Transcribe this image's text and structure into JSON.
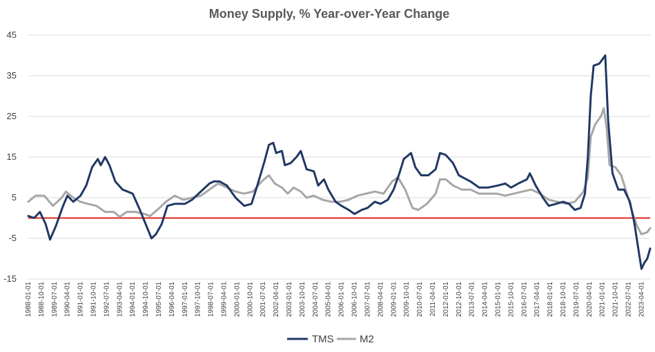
{
  "chart_data": {
    "type": "line",
    "title": "Money Supply, % Year-over-Year Change",
    "xlabel": "",
    "ylabel": "",
    "ylim": [
      -15,
      45
    ],
    "yticks": [
      45,
      35,
      25,
      15,
      5,
      -5,
      -15
    ],
    "grid": "horizontal",
    "legend_position": "bottom",
    "reference_line": {
      "value": 0,
      "color": "#e0251b"
    },
    "x_range": [
      "1988-01-01",
      "2023-10-01"
    ],
    "xticks": [
      "1988-01-01",
      "1988-10-01",
      "1989-07-01",
      "1990-04-01",
      "1991-01-01",
      "1991-10-01",
      "1992-07-01",
      "1993-04-01",
      "1994-01-01",
      "1994-10-01",
      "1995-07-01",
      "1996-04-01",
      "1997-01-01",
      "1997-10-01",
      "1998-07-01",
      "1999-04-01",
      "2000-01-01",
      "2000-10-01",
      "2001-07-01",
      "2002-04-01",
      "2003-01-01",
      "2003-10-01",
      "2004-07-01",
      "2005-04-01",
      "2006-01-01",
      "2006-10-01",
      "2007-07-01",
      "2008-04-01",
      "2009-01-01",
      "2009-10-01",
      "2010-07-01",
      "2011-04-01",
      "2012-01-01",
      "2012-10-01",
      "2013-07-01",
      "2014-04-01",
      "2015-01-01",
      "2015-10-01",
      "2016-07-01",
      "2017-04-01",
      "2018-01-01",
      "2018-10-01",
      "2019-07-01",
      "2020-04-01",
      "2021-01-01",
      "2021-10-01",
      "2022-07-01",
      "2023-04-01"
    ],
    "series": [
      {
        "name": "TMS",
        "color": "#1f3864",
        "points": [
          [
            "1988-01-01",
            0.5
          ],
          [
            "1988-05-01",
            0.0
          ],
          [
            "1988-09-01",
            1.5
          ],
          [
            "1989-01-01",
            -1.5
          ],
          [
            "1989-04-01",
            -5.3
          ],
          [
            "1989-08-01",
            -2.0
          ],
          [
            "1990-01-01",
            3.0
          ],
          [
            "1990-04-01",
            5.5
          ],
          [
            "1990-08-01",
            4.0
          ],
          [
            "1991-01-01",
            5.5
          ],
          [
            "1991-05-01",
            8.0
          ],
          [
            "1991-09-01",
            12.5
          ],
          [
            "1992-01-01",
            14.5
          ],
          [
            "1992-03-01",
            13.0
          ],
          [
            "1992-06-01",
            15.0
          ],
          [
            "1992-09-01",
            13.0
          ],
          [
            "1993-01-01",
            9.0
          ],
          [
            "1993-06-01",
            7.0
          ],
          [
            "1994-01-01",
            6.0
          ],
          [
            "1994-06-01",
            2.0
          ],
          [
            "1994-10-01",
            -1.5
          ],
          [
            "1995-02-01",
            -5.0
          ],
          [
            "1995-05-01",
            -4.0
          ],
          [
            "1995-09-01",
            -1.5
          ],
          [
            "1996-01-01",
            3.0
          ],
          [
            "1996-06-01",
            3.5
          ],
          [
            "1997-01-01",
            3.5
          ],
          [
            "1997-06-01",
            4.5
          ],
          [
            "1997-12-01",
            6.5
          ],
          [
            "1998-06-01",
            8.5
          ],
          [
            "1998-09-01",
            9.0
          ],
          [
            "1999-01-01",
            9.0
          ],
          [
            "1999-06-01",
            8.0
          ],
          [
            "1999-12-01",
            5.0
          ],
          [
            "2000-06-01",
            3.0
          ],
          [
            "2000-11-01",
            3.5
          ],
          [
            "2001-03-01",
            8.0
          ],
          [
            "2001-08-01",
            14.0
          ],
          [
            "2001-11-01",
            18.0
          ],
          [
            "2002-02-01",
            18.5
          ],
          [
            "2002-04-01",
            16.0
          ],
          [
            "2002-08-01",
            16.5
          ],
          [
            "2002-10-01",
            13.0
          ],
          [
            "2003-02-01",
            13.5
          ],
          [
            "2003-06-01",
            15.0
          ],
          [
            "2003-09-01",
            16.5
          ],
          [
            "2004-01-01",
            12.0
          ],
          [
            "2004-06-01",
            11.5
          ],
          [
            "2004-09-01",
            8.0
          ],
          [
            "2005-01-01",
            9.5
          ],
          [
            "2005-04-01",
            7.0
          ],
          [
            "2005-09-01",
            4.0
          ],
          [
            "2006-01-01",
            3.0
          ],
          [
            "2006-06-01",
            2.0
          ],
          [
            "2006-10-01",
            1.0
          ],
          [
            "2007-03-01",
            2.0
          ],
          [
            "2007-07-01",
            2.5
          ],
          [
            "2007-12-01",
            4.0
          ],
          [
            "2008-04-01",
            3.5
          ],
          [
            "2008-09-01",
            4.5
          ],
          [
            "2009-01-01",
            7.0
          ],
          [
            "2009-05-01",
            11.0
          ],
          [
            "2009-08-01",
            14.5
          ],
          [
            "2010-01-01",
            16.0
          ],
          [
            "2010-04-01",
            12.5
          ],
          [
            "2010-08-01",
            10.5
          ],
          [
            "2011-01-01",
            10.5
          ],
          [
            "2011-06-01",
            12.0
          ],
          [
            "2011-09-01",
            16.0
          ],
          [
            "2012-01-01",
            15.5
          ],
          [
            "2012-06-01",
            13.5
          ],
          [
            "2012-10-01",
            10.5
          ],
          [
            "2013-06-01",
            9.0
          ],
          [
            "2013-12-01",
            7.5
          ],
          [
            "2014-06-01",
            7.5
          ],
          [
            "2015-01-01",
            8.0
          ],
          [
            "2015-06-01",
            8.5
          ],
          [
            "2015-10-01",
            7.5
          ],
          [
            "2016-03-01",
            8.5
          ],
          [
            "2016-09-01",
            9.5
          ],
          [
            "2016-11-01",
            11.0
          ],
          [
            "2017-03-01",
            8.0
          ],
          [
            "2017-08-01",
            5.0
          ],
          [
            "2017-12-01",
            3.0
          ],
          [
            "2018-05-01",
            3.5
          ],
          [
            "2018-10-01",
            4.0
          ],
          [
            "2019-02-01",
            3.5
          ],
          [
            "2019-06-01",
            2.0
          ],
          [
            "2019-10-01",
            2.5
          ],
          [
            "2020-01-01",
            6.0
          ],
          [
            "2020-03-01",
            15.0
          ],
          [
            "2020-05-01",
            30.0
          ],
          [
            "2020-07-01",
            37.5
          ],
          [
            "2020-11-01",
            38.0
          ],
          [
            "2021-03-01",
            40.0
          ],
          [
            "2021-05-01",
            24.0
          ],
          [
            "2021-08-01",
            11.0
          ],
          [
            "2021-12-01",
            7.0
          ],
          [
            "2022-04-01",
            7.0
          ],
          [
            "2022-08-01",
            4.0
          ],
          [
            "2022-11-01",
            -1.0
          ],
          [
            "2023-02-01",
            -8.0
          ],
          [
            "2023-04-01",
            -12.5
          ],
          [
            "2023-06-01",
            -11.0
          ],
          [
            "2023-08-01",
            -10.0
          ],
          [
            "2023-10-01",
            -7.5
          ]
        ]
      },
      {
        "name": "M2",
        "color": "#a6a6a6",
        "points": [
          [
            "1988-01-01",
            4.0
          ],
          [
            "1988-06-01",
            5.5
          ],
          [
            "1988-12-01",
            5.5
          ],
          [
            "1989-06-01",
            3.0
          ],
          [
            "1989-12-01",
            5.0
          ],
          [
            "1990-03-01",
            6.5
          ],
          [
            "1990-08-01",
            5.0
          ],
          [
            "1991-01-01",
            4.0
          ],
          [
            "1991-06-01",
            3.5
          ],
          [
            "1991-12-01",
            3.0
          ],
          [
            "1992-06-01",
            1.5
          ],
          [
            "1992-12-01",
            1.5
          ],
          [
            "1993-04-01",
            0.3
          ],
          [
            "1993-09-01",
            1.5
          ],
          [
            "1994-03-01",
            1.5
          ],
          [
            "1994-09-01",
            1.0
          ],
          [
            "1995-01-01",
            0.5
          ],
          [
            "1995-06-01",
            2.0
          ],
          [
            "1995-12-01",
            4.0
          ],
          [
            "1996-06-01",
            5.5
          ],
          [
            "1996-12-01",
            4.5
          ],
          [
            "1997-06-01",
            5.0
          ],
          [
            "1997-12-01",
            5.5
          ],
          [
            "1998-06-01",
            7.0
          ],
          [
            "1998-12-01",
            8.5
          ],
          [
            "1999-06-01",
            7.5
          ],
          [
            "1999-12-01",
            6.5
          ],
          [
            "2000-06-01",
            6.0
          ],
          [
            "2000-12-01",
            6.5
          ],
          [
            "2001-06-01",
            9.0
          ],
          [
            "2001-11-01",
            10.5
          ],
          [
            "2002-03-01",
            8.5
          ],
          [
            "2002-08-01",
            7.5
          ],
          [
            "2002-12-01",
            6.0
          ],
          [
            "2003-04-01",
            7.5
          ],
          [
            "2003-09-01",
            6.5
          ],
          [
            "2004-01-01",
            5.0
          ],
          [
            "2004-06-01",
            5.5
          ],
          [
            "2004-12-01",
            4.5
          ],
          [
            "2005-06-01",
            4.0
          ],
          [
            "2005-12-01",
            4.0
          ],
          [
            "2006-06-01",
            4.5
          ],
          [
            "2006-12-01",
            5.5
          ],
          [
            "2007-06-01",
            6.0
          ],
          [
            "2007-12-01",
            6.5
          ],
          [
            "2008-06-01",
            6.0
          ],
          [
            "2008-12-01",
            9.0
          ],
          [
            "2009-04-01",
            10.0
          ],
          [
            "2009-09-01",
            7.0
          ],
          [
            "2010-02-01",
            2.5
          ],
          [
            "2010-06-01",
            2.0
          ],
          [
            "2010-12-01",
            3.5
          ],
          [
            "2011-06-01",
            6.0
          ],
          [
            "2011-09-01",
            9.5
          ],
          [
            "2012-01-01",
            9.5
          ],
          [
            "2012-06-01",
            8.0
          ],
          [
            "2012-12-01",
            7.0
          ],
          [
            "2013-06-01",
            7.0
          ],
          [
            "2013-12-01",
            6.0
          ],
          [
            "2014-06-01",
            6.0
          ],
          [
            "2014-12-01",
            6.0
          ],
          [
            "2015-06-01",
            5.5
          ],
          [
            "2015-12-01",
            6.0
          ],
          [
            "2016-06-01",
            6.5
          ],
          [
            "2016-12-01",
            7.0
          ],
          [
            "2017-06-01",
            6.0
          ],
          [
            "2017-12-01",
            4.5
          ],
          [
            "2018-06-01",
            4.0
          ],
          [
            "2018-12-01",
            3.5
          ],
          [
            "2019-06-01",
            4.0
          ],
          [
            "2019-12-01",
            6.5
          ],
          [
            "2020-03-01",
            10.0
          ],
          [
            "2020-05-01",
            20.0
          ],
          [
            "2020-08-01",
            23.0
          ],
          [
            "2020-12-01",
            25.0
          ],
          [
            "2021-02-01",
            27.0
          ],
          [
            "2021-04-01",
            22.0
          ],
          [
            "2021-06-01",
            13.0
          ],
          [
            "2021-10-01",
            12.5
          ],
          [
            "2022-02-01",
            10.5
          ],
          [
            "2022-06-01",
            6.0
          ],
          [
            "2022-10-01",
            1.0
          ],
          [
            "2023-01-01",
            -2.0
          ],
          [
            "2023-04-01",
            -4.0
          ],
          [
            "2023-08-01",
            -3.5
          ],
          [
            "2023-10-01",
            -2.5
          ]
        ]
      }
    ]
  }
}
